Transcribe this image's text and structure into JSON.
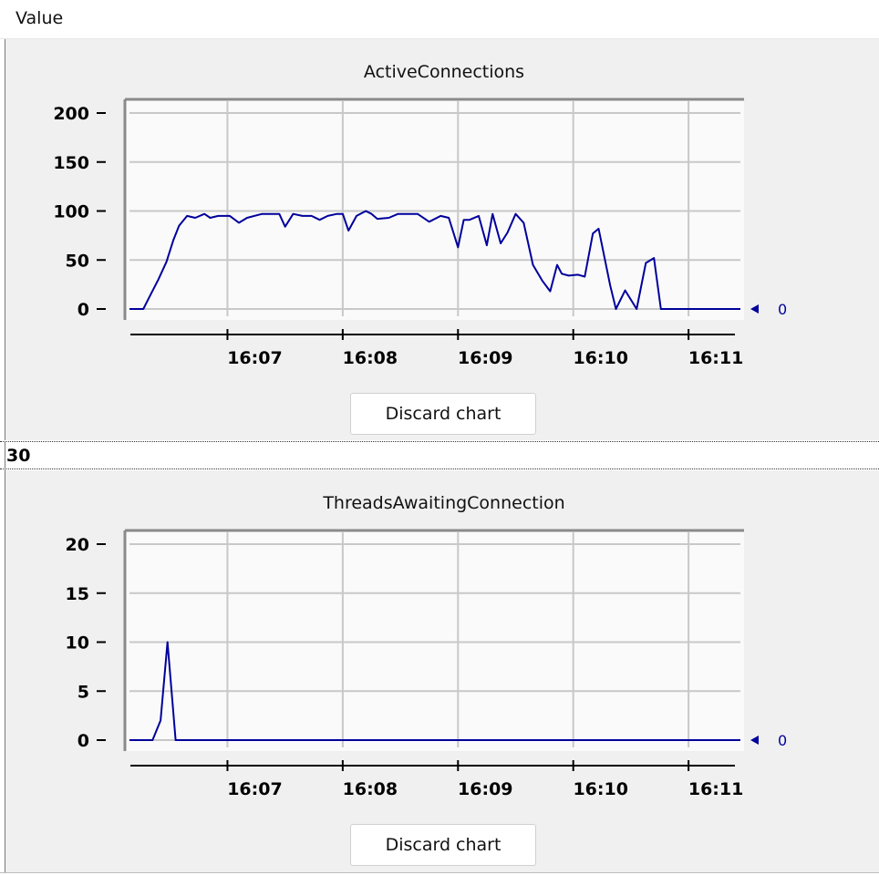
{
  "header": {
    "column_label": "Value"
  },
  "row": {
    "value": "30"
  },
  "charts": [
    {
      "title": "ActiveConnections",
      "current_value": "0",
      "discard_label": "Discard chart"
    },
    {
      "title": "ThreadsAwaitingConnection",
      "current_value": "0",
      "discard_label": "Discard chart"
    }
  ],
  "colors": {
    "line": "#00009c",
    "grid": "#c8c8c8",
    "plot_bg": "#fafafa",
    "panel_bg": "#f0f0f0"
  },
  "chart_data": [
    {
      "type": "line",
      "title": "ActiveConnections",
      "xlabel": "",
      "ylabel": "",
      "ylim": [
        0,
        200
      ],
      "yticks": [
        0,
        50,
        100,
        150,
        200
      ],
      "xticks": [
        "16:07",
        "16:08",
        "16:09",
        "16:10",
        "16:11"
      ],
      "xlim_minutes": [
        6.15,
        11.45
      ],
      "grid": true,
      "series": [
        {
          "x_minutes": [
            6.15,
            6.27,
            6.33,
            6.4,
            6.47,
            6.53,
            6.58,
            6.65,
            6.72,
            6.8,
            6.85,
            6.92,
            7.02,
            7.1,
            7.17,
            7.3,
            7.37,
            7.45,
            7.5,
            7.57,
            7.65,
            7.73,
            7.8,
            7.87,
            7.95,
            8.0,
            8.05,
            8.12,
            8.2,
            8.25,
            8.3,
            8.4,
            8.48,
            8.55,
            8.6,
            8.65,
            8.75,
            8.85,
            8.92,
            9.0,
            9.05,
            9.1,
            9.18,
            9.25,
            9.3,
            9.37,
            9.43,
            9.5,
            9.57,
            9.65,
            9.73,
            9.8,
            9.86,
            9.9,
            9.96,
            10.04,
            10.1,
            10.17,
            10.22,
            10.32,
            10.37,
            10.45,
            10.55,
            10.63,
            10.7,
            10.76,
            10.82,
            10.85,
            10.92,
            11.05,
            11.2,
            11.35,
            11.45
          ],
          "y": [
            0,
            0,
            14,
            30,
            48,
            70,
            85,
            95,
            93,
            97,
            93,
            95,
            95,
            88,
            93,
            97,
            97,
            97,
            84,
            97,
            95,
            95,
            91,
            95,
            97,
            97,
            80,
            95,
            100,
            97,
            92,
            93,
            97,
            97,
            97,
            97,
            89,
            95,
            93,
            63,
            91,
            91,
            95,
            65,
            97,
            67,
            78,
            97,
            88,
            45,
            29,
            18,
            45,
            36,
            34,
            35,
            33,
            77,
            82,
            24,
            0,
            19,
            0,
            47,
            52,
            0,
            0,
            0,
            0,
            0,
            0,
            0,
            0
          ]
        }
      ]
    },
    {
      "type": "line",
      "title": "ThreadsAwaitingConnection",
      "xlabel": "",
      "ylabel": "",
      "ylim": [
        0,
        20
      ],
      "yticks": [
        0,
        5,
        10,
        15,
        20
      ],
      "xticks": [
        "16:07",
        "16:08",
        "16:09",
        "16:10",
        "16:11"
      ],
      "xlim_minutes": [
        6.15,
        11.45
      ],
      "grid": true,
      "series": [
        {
          "x_minutes": [
            6.15,
            6.35,
            6.42,
            6.48,
            6.55,
            6.7,
            7.0,
            8.0,
            9.0,
            10.0,
            11.0,
            11.45
          ],
          "y": [
            0,
            0,
            2,
            10,
            0,
            0,
            0,
            0,
            0,
            0,
            0,
            0
          ]
        }
      ]
    }
  ]
}
